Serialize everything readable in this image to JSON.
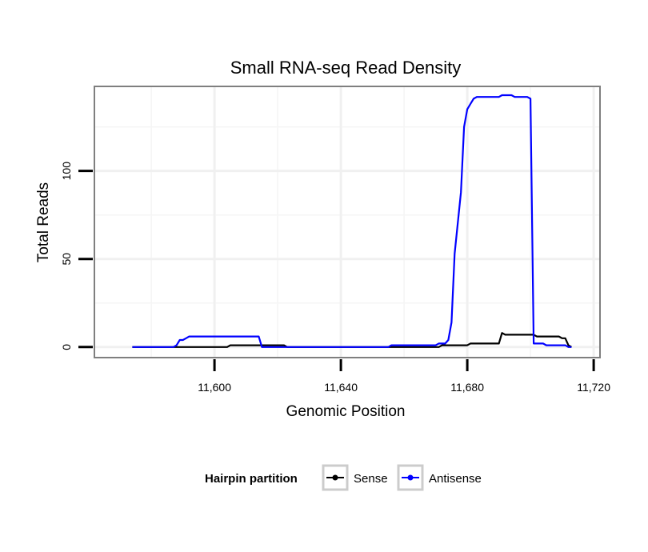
{
  "chart_data": {
    "type": "line",
    "title": "Small RNA-seq Read Density",
    "xlabel": "Genomic Position",
    "ylabel": "Total Reads",
    "xlim": [
      11562,
      11722
    ],
    "ylim": [
      -6,
      148
    ],
    "x_ticks": [
      {
        "value": 11600,
        "label": "11,600"
      },
      {
        "value": 11640,
        "label": "11,640"
      },
      {
        "value": 11680,
        "label": "11,680"
      },
      {
        "value": 11720,
        "label": "11,720"
      }
    ],
    "y_ticks": [
      {
        "value": 0,
        "label": "0"
      },
      {
        "value": 50,
        "label": "50"
      },
      {
        "value": 100,
        "label": "100"
      }
    ],
    "x_minor_grid": [
      11580,
      11620,
      11660,
      11700
    ],
    "y_minor_grid": [
      25,
      75,
      125
    ],
    "grid": true,
    "legend": {
      "title": "Hairpin partition",
      "position": "bottom"
    },
    "series": [
      {
        "name": "Sense",
        "color": "#000000",
        "points": [
          [
            11574,
            0
          ],
          [
            11604,
            0
          ],
          [
            11605,
            1
          ],
          [
            11614,
            1
          ],
          [
            11615,
            1
          ],
          [
            11622,
            1
          ],
          [
            11623,
            0
          ],
          [
            11671,
            0
          ],
          [
            11672,
            1
          ],
          [
            11680,
            1
          ],
          [
            11681,
            2
          ],
          [
            11690,
            2
          ],
          [
            11691,
            8
          ],
          [
            11692,
            7
          ],
          [
            11701,
            7
          ],
          [
            11702,
            6
          ],
          [
            11709,
            6
          ],
          [
            11710,
            5
          ],
          [
            11711,
            5
          ],
          [
            11712,
            1
          ],
          [
            11713,
            0
          ]
        ]
      },
      {
        "name": "Antisense",
        "color": "#0000ff",
        "points": [
          [
            11574,
            0
          ],
          [
            11587,
            0
          ],
          [
            11588,
            1
          ],
          [
            11589,
            4
          ],
          [
            11590,
            4
          ],
          [
            11591,
            5
          ],
          [
            11592,
            6
          ],
          [
            11614,
            6
          ],
          [
            11615,
            0
          ],
          [
            11622,
            0
          ],
          [
            11623,
            0
          ],
          [
            11655,
            0
          ],
          [
            11656,
            1
          ],
          [
            11670,
            1
          ],
          [
            11671,
            2
          ],
          [
            11673,
            2
          ],
          [
            11674,
            4
          ],
          [
            11675,
            14
          ],
          [
            11676,
            53
          ],
          [
            11678,
            88
          ],
          [
            11679,
            125
          ],
          [
            11680,
            135
          ],
          [
            11681,
            138
          ],
          [
            11682,
            141
          ],
          [
            11683,
            142
          ],
          [
            11690,
            142
          ],
          [
            11691,
            143
          ],
          [
            11694,
            143
          ],
          [
            11695,
            142
          ],
          [
            11699,
            142
          ],
          [
            11700,
            141
          ],
          [
            11701,
            2
          ],
          [
            11704,
            2
          ],
          [
            11705,
            1
          ],
          [
            11711,
            1
          ],
          [
            11712,
            0
          ],
          [
            11713,
            0
          ]
        ]
      }
    ]
  }
}
